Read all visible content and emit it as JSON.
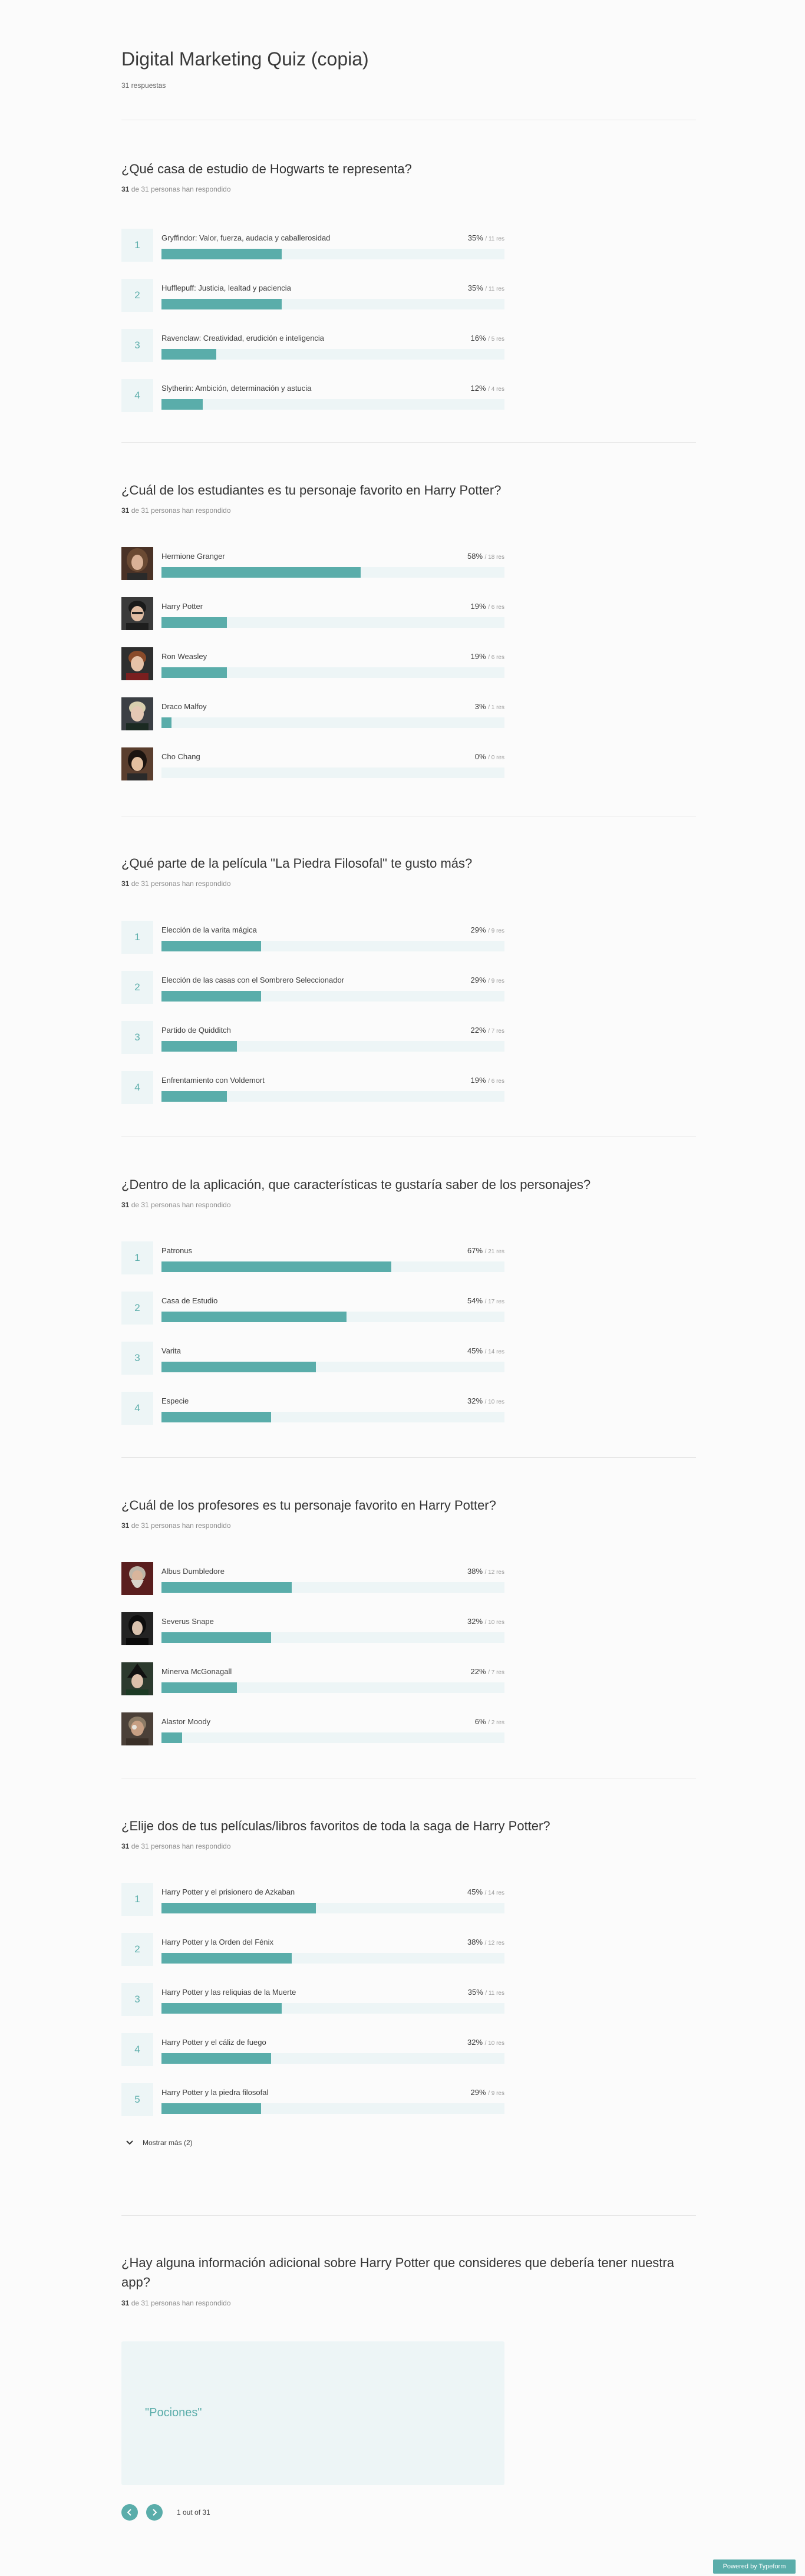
{
  "header": {
    "title": "Digital Marketing Quiz (copia)",
    "responses": "31 respuestas"
  },
  "colors": {
    "accent": "#5aadaa",
    "track": "#edf5f6"
  },
  "questions": [
    {
      "title": "¿Qué casa de estudio de Hogwarts te representa?",
      "answered_count": "31",
      "answered_rest": "de 31 personas han respondido",
      "options": [
        {
          "badge": "1",
          "label": "Gryffindor: Valor, fuerza, audacia y caballerosidad",
          "pct": "35%",
          "count": "/ 11 res",
          "value": 35
        },
        {
          "badge": "2",
          "label": "Hufflepuff: Justicia, lealtad y paciencia",
          "pct": "35%",
          "count": "/ 11 res",
          "value": 35
        },
        {
          "badge": "3",
          "label": "Ravenclaw: Creatividad, erudición e inteligencia",
          "pct": "16%",
          "count": "/ 5 res",
          "value": 16
        },
        {
          "badge": "4",
          "label": "Slytherin: Ambición, determinación y astucia",
          "pct": "12%",
          "count": "/ 4 res",
          "value": 12
        }
      ]
    },
    {
      "title": "¿Cuál de los estudiantes es tu personaje favorito en Harry Potter?",
      "answered_count": "31",
      "answered_rest": "de 31 personas han respondido",
      "options": [
        {
          "label": "Hermione Granger",
          "pct": "58%",
          "count": "/ 18 res",
          "value": 58,
          "avatar": "hermione"
        },
        {
          "label": "Harry Potter",
          "pct": "19%",
          "count": "/ 6 res",
          "value": 19,
          "avatar": "harry"
        },
        {
          "label": "Ron Weasley",
          "pct": "19%",
          "count": "/ 6 res",
          "value": 19,
          "avatar": "ron"
        },
        {
          "label": "Draco Malfoy",
          "pct": "3%",
          "count": "/ 1 res",
          "value": 3,
          "avatar": "draco"
        },
        {
          "label": "Cho Chang",
          "pct": "0%",
          "count": "/ 0 res",
          "value": 0,
          "avatar": "cho"
        }
      ]
    },
    {
      "title": "¿Qué parte de la película \"La Piedra Filosofal\" te gusto más?",
      "answered_count": "31",
      "answered_rest": "de 31 personas han respondido",
      "options": [
        {
          "badge": "1",
          "label": "Elección de la varita mágica",
          "pct": "29%",
          "count": "/ 9 res",
          "value": 29
        },
        {
          "badge": "2",
          "label": "Elección de las casas con el Sombrero Seleccionador",
          "pct": "29%",
          "count": "/ 9 res",
          "value": 29
        },
        {
          "badge": "3",
          "label": "Partido de Quidditch",
          "pct": "22%",
          "count": "/ 7 res",
          "value": 22
        },
        {
          "badge": "4",
          "label": "Enfrentamiento con Voldemort",
          "pct": "19%",
          "count": "/ 6 res",
          "value": 19
        }
      ]
    },
    {
      "title": "¿Dentro de la aplicación, que características te gustaría saber de los personajes?",
      "answered_count": "31",
      "answered_rest": "de 31 personas han respondido",
      "options": [
        {
          "badge": "1",
          "label": "Patronus",
          "pct": "67%",
          "count": "/ 21 res",
          "value": 67
        },
        {
          "badge": "2",
          "label": "Casa de Estudio",
          "pct": "54%",
          "count": "/ 17 res",
          "value": 54
        },
        {
          "badge": "3",
          "label": "Varita",
          "pct": "45%",
          "count": "/ 14 res",
          "value": 45
        },
        {
          "badge": "4",
          "label": "Especie",
          "pct": "32%",
          "count": "/ 10 res",
          "value": 32
        }
      ]
    },
    {
      "title": "¿Cuál de los profesores es tu personaje favorito en Harry Potter?",
      "answered_count": "31",
      "answered_rest": "de 31 personas han respondido",
      "options": [
        {
          "label": "Albus Dumbledore",
          "pct": "38%",
          "count": "/ 12 res",
          "value": 38,
          "avatar": "dumbledore"
        },
        {
          "label": "Severus Snape",
          "pct": "32%",
          "count": "/ 10 res",
          "value": 32,
          "avatar": "snape"
        },
        {
          "label": "Minerva McGonagall",
          "pct": "22%",
          "count": "/ 7 res",
          "value": 22,
          "avatar": "mcgonagall"
        },
        {
          "label": "Alastor Moody",
          "pct": "6%",
          "count": "/ 2 res",
          "value": 6,
          "avatar": "moody"
        }
      ]
    },
    {
      "title": "¿Elije dos de tus películas/libros favoritos de toda la saga de Harry Potter?",
      "answered_count": "31",
      "answered_rest": "de 31 personas han respondido",
      "options": [
        {
          "badge": "1",
          "label": "Harry Potter y el prisionero de Azkaban",
          "pct": "45%",
          "count": "/ 14 res",
          "value": 45
        },
        {
          "badge": "2",
          "label": "Harry Potter y la Orden del Fénix",
          "pct": "38%",
          "count": "/ 12 res",
          "value": 38
        },
        {
          "badge": "3",
          "label": "Harry Potter y las reliquias de la Muerte",
          "pct": "35%",
          "count": "/ 11 res",
          "value": 35
        },
        {
          "badge": "4",
          "label": "Harry Potter y el cáliz de fuego",
          "pct": "32%",
          "count": "/ 10 res",
          "value": 32
        },
        {
          "badge": "5",
          "label": "Harry Potter y la piedra filosofal",
          "pct": "29%",
          "count": "/ 9 res",
          "value": 29
        }
      ],
      "show_more": "Mostrar más (2)"
    }
  ],
  "text_question": {
    "title": "¿Hay alguna información adicional sobre Harry Potter que consideres que debería tener nuestra app?",
    "answered_count": "31",
    "answered_rest": "de 31 personas han respondido",
    "answer": "\"Pociones\"",
    "pager": "1 out of 31"
  },
  "footer": {
    "powered": "Powered by Typeform"
  }
}
